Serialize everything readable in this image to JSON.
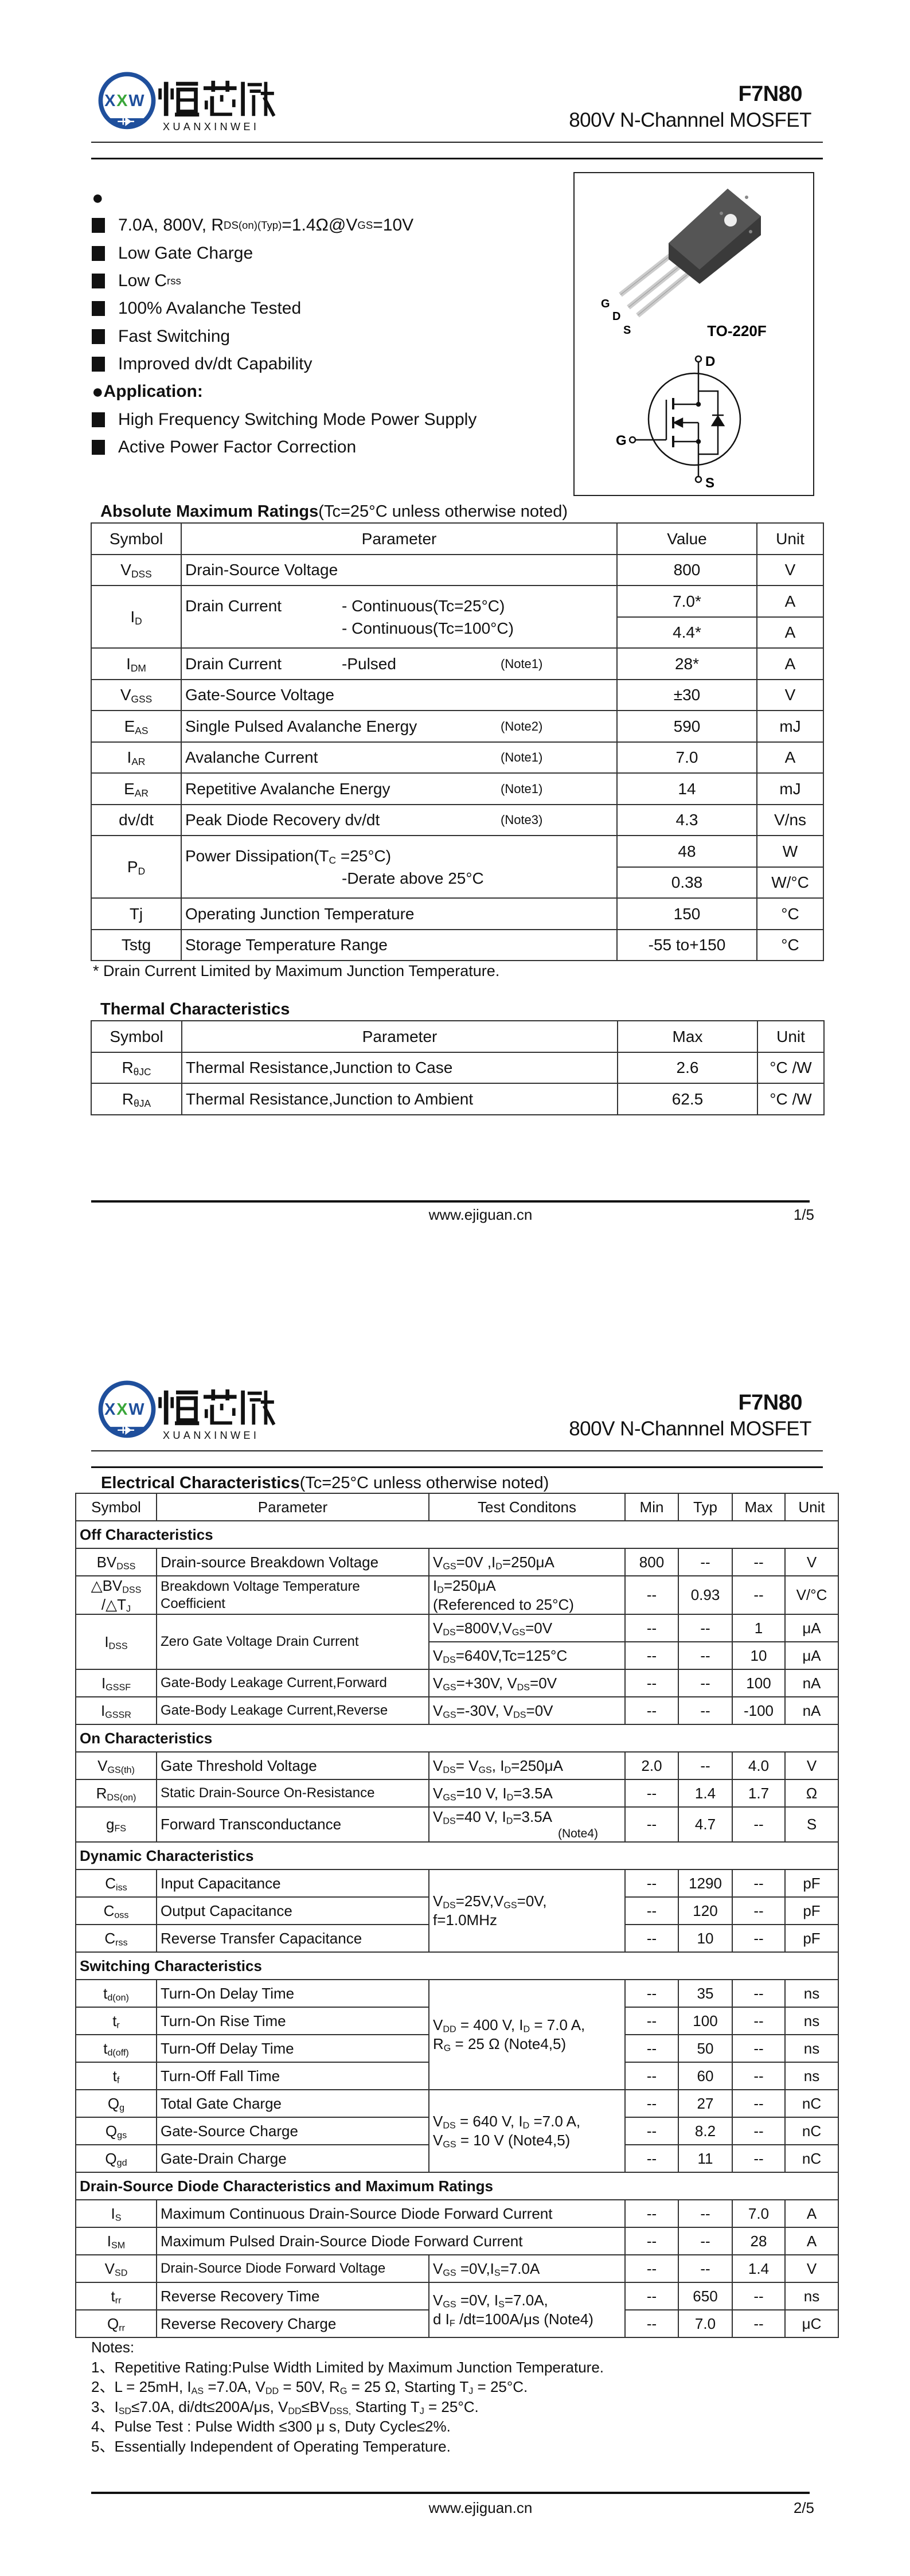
{
  "colors": {
    "logo_blue": "#1f4f9c",
    "logo_green": "#3aa63a",
    "text": "#111111",
    "rule": "#222222"
  },
  "header": {
    "logo": {
      "mark_letters": [
        "X",
        "X",
        "W"
      ],
      "chinese": "恒芯微",
      "pinyin": "XUANXINWEI"
    },
    "part": "F7N80",
    "subtitle": "800V N-Channnel MOSFET"
  },
  "page1": {
    "features": {
      "heading_bullet": "●",
      "items": [
        [
          "7.0A, 800V, R",
          {
            "sub": "DS(on)(Typ)"
          },
          " =1.4Ω@V",
          {
            "sub": "GS"
          },
          "=10V"
        ],
        [
          "Low Gate Charge"
        ],
        [
          "Low C",
          {
            "sub": "rss"
          }
        ],
        [
          "100% Avalanche Tested"
        ],
        [
          "Fast Switching"
        ],
        [
          "Improved dv/dt Capability"
        ]
      ],
      "application_heading": "Application:",
      "application_items": [
        [
          "High Frequency Switching Mode Power Supply"
        ],
        [
          "Active Power Factor Correction"
        ]
      ]
    },
    "package": {
      "name": "TO-220F",
      "pins": {
        "g": "G",
        "d": "D",
        "s": "S"
      }
    },
    "abs_max": {
      "title": "Absolute Maximum Ratings",
      "condition": "(Tc=25°C unless otherwise noted)",
      "headers": {
        "sym": "Symbol",
        "param": "Parameter",
        "value": "Value",
        "unit": "Unit"
      },
      "rows": [
        {
          "sym": [
            "V",
            {
              "sub": "DSS"
            }
          ],
          "param": "Drain-Source Voltage",
          "value": "800",
          "unit": "V"
        },
        {
          "sym": [
            "I",
            {
              "sub": "D"
            }
          ],
          "param": {
            "text": "Drain Current",
            "detail": [
              "- Continuous(Tc=25°C)",
              "- Continuous(Tc=100°C)"
            ]
          },
          "value": "7.0*",
          "unit": "A"
        },
        {
          "value": "4.4*",
          "unit": "A"
        },
        {
          "sym": [
            "I",
            {
              "sub": "DM"
            }
          ],
          "param": {
            "text": "Drain Current",
            "detail": [
              "-Pulsed"
            ],
            "note": "(Note1)"
          },
          "value": "28*",
          "unit": "A"
        },
        {
          "sym": [
            "V",
            {
              "sub": "GSS"
            }
          ],
          "param": "Gate-Source Voltage",
          "value": "±30",
          "unit": "V"
        },
        {
          "sym": [
            "E",
            {
              "sub": "AS"
            }
          ],
          "param": {
            "text": "Single Pulsed Avalanche Energy",
            "note": "(Note2)"
          },
          "value": "590",
          "unit": "mJ"
        },
        {
          "sym": [
            "I",
            {
              "sub": "AR"
            }
          ],
          "param": {
            "text": "Avalanche Current",
            "note": "(Note1)"
          },
          "value": "7.0",
          "unit": "A"
        },
        {
          "sym": [
            "E",
            {
              "sub": "AR"
            }
          ],
          "param": {
            "text": "Repetitive Avalanche Energy",
            "note": "(Note1)"
          },
          "value": "14",
          "unit": "mJ"
        },
        {
          "sym": "dv/dt",
          "param": {
            "text": "Peak Diode Recovery dv/dt",
            "note": "(Note3)"
          },
          "value": "4.3",
          "unit": "V/ns"
        },
        {
          "sym": [
            "P",
            {
              "sub": "D"
            }
          ],
          "param": {
            "text": [
              "Power Dissipation(T",
              {
                "sub": "C"
              },
              " =25°C)"
            ],
            "detail": [
              null,
              "-Derate above 25°C"
            ]
          },
          "value": "48",
          "unit": "W"
        },
        {
          "value": "0.38",
          "unit": "W/°C"
        },
        {
          "sym": "Tj",
          "param": "Operating Junction Temperature",
          "value": "150",
          "unit": "°C"
        },
        {
          "sym": "Tstg",
          "param": "Storage Temperature Range",
          "value": "-55 to+150",
          "unit": "°C"
        }
      ],
      "footnote": "* Drain Current Limited by Maximum Junction Temperature."
    },
    "thermal": {
      "title": "Thermal Characteristics",
      "headers": {
        "sym": "Symbol",
        "param": "Parameter",
        "max": "Max",
        "unit": "Unit"
      },
      "rows": [
        {
          "sym": [
            "R",
            {
              "sub": "θJC"
            }
          ],
          "param": "Thermal Resistance,Junction to Case",
          "max": "2.6",
          "unit": "°C /W"
        },
        {
          "sym": [
            "R",
            {
              "sub": "θJA"
            }
          ],
          "param": "Thermal Resistance,Junction to Ambient",
          "max": "62.5",
          "unit": "°C /W"
        }
      ]
    },
    "footer": {
      "url": "www.ejiguan.cn",
      "page": "1/5"
    }
  },
  "page2": {
    "electrical": {
      "title": "Electrical Characteristics",
      "condition": "(Tc=25°C unless otherwise noted)",
      "headers": {
        "sym": "Symbol",
        "param": "Parameter",
        "cond": "Test Conditons",
        "min": "Min",
        "typ": "Typ",
        "max": "Max",
        "unit": "Unit"
      },
      "rows": [
        {
          "section": "Off Characteristics"
        },
        {
          "sym": [
            "BV",
            {
              "sub": "DSS"
            }
          ],
          "param": "Drain-source Breakdown Voltage",
          "cond": [
            "V",
            {
              "sub": "GS"
            },
            "=0V ,I",
            {
              "sub": "D"
            },
            "=250μA"
          ],
          "min": "800",
          "typ": "--",
          "max": "--",
          "unit": "V"
        },
        {
          "sym": [
            "△BV",
            {
              "sub": "DSS"
            },
            "\n/△T",
            {
              "sub": "J"
            }
          ],
          "param": "Breakdown Voltage Temperature\nCoefficient",
          "cond": [
            "I",
            {
              "sub": "D"
            },
            "=250μA\n(Referenced to 25°C)"
          ],
          "min": "--",
          "typ": "0.93",
          "max": "--",
          "unit": "V/°C"
        },
        {
          "sym": [
            "I",
            {
              "sub": "DSS"
            }
          ],
          "param": "Zero Gate Voltage Drain Current",
          "cond": [
            "V",
            {
              "sub": "DS"
            },
            "=800V,V",
            {
              "sub": "GS"
            },
            "=0V"
          ],
          "min": "--",
          "typ": "--",
          "max": "1",
          "unit": "μA"
        },
        {
          "cond": [
            "V",
            {
              "sub": "DS"
            },
            "=640V,Tc=125°C"
          ],
          "min": "--",
          "typ": "--",
          "max": "10",
          "unit": "μA"
        },
        {
          "sym": [
            "I",
            {
              "sub": "GSSF"
            }
          ],
          "param": "Gate-Body Leakage Current,Forward",
          "cond": [
            "V",
            {
              "sub": "GS"
            },
            "=+30V, V",
            {
              "sub": "DS"
            },
            "=0V"
          ],
          "min": "--",
          "typ": "--",
          "max": "100",
          "unit": "nA"
        },
        {
          "sym": [
            "I",
            {
              "sub": "GSSR"
            }
          ],
          "param": "Gate-Body Leakage Current,Reverse",
          "cond": [
            "V",
            {
              "sub": "GS"
            },
            "=-30V, V",
            {
              "sub": "DS"
            },
            "=0V"
          ],
          "min": "--",
          "typ": "--",
          "max": "-100",
          "unit": "nA"
        },
        {
          "section": "On Characteristics"
        },
        {
          "sym": [
            "V",
            {
              "sub": "GS(th)"
            }
          ],
          "param": "Gate Threshold Voltage",
          "cond": [
            "V",
            {
              "sub": "DS"
            },
            "= V",
            {
              "sub": "GS"
            },
            ", I",
            {
              "sub": "D"
            },
            "=250μA"
          ],
          "min": "2.0",
          "typ": "--",
          "max": "4.0",
          "unit": "V"
        },
        {
          "sym": [
            "R",
            {
              "sub": "DS(on)"
            }
          ],
          "param": "Static Drain-Source On-Resistance",
          "cond": [
            "V",
            {
              "sub": "GS"
            },
            "=10 V, I",
            {
              "sub": "D"
            },
            "=3.5A"
          ],
          "min": "--",
          "typ": "1.4",
          "max": "1.7",
          "unit": "Ω"
        },
        {
          "sym": [
            "g",
            {
              "sub": "FS"
            }
          ],
          "param": "Forward Transconductance",
          "cond": [
            "V",
            {
              "sub": "DS"
            },
            "=40 V, I",
            {
              "sub": "D"
            },
            "=3.5A",
            {
              "note": "(Note4)"
            }
          ],
          "min": "--",
          "typ": "4.7",
          "max": "--",
          "unit": "S"
        },
        {
          "section": "Dynamic Characteristics"
        },
        {
          "sym": [
            "C",
            {
              "sub": "iss"
            }
          ],
          "param": "Input Capacitance",
          "cond": [
            "V",
            {
              "sub": "DS"
            },
            "=25V,V",
            {
              "sub": "GS"
            },
            "=0V,\nf=1.0MHz"
          ],
          "min": "--",
          "typ": "1290",
          "max": "--",
          "unit": "pF"
        },
        {
          "sym": [
            "C",
            {
              "sub": "oss"
            }
          ],
          "param": "Output Capacitance",
          "min": "--",
          "typ": "120",
          "max": "--",
          "unit": "pF"
        },
        {
          "sym": [
            "C",
            {
              "sub": "rss"
            }
          ],
          "param": "Reverse Transfer Capacitance",
          "min": "--",
          "typ": "10",
          "max": "--",
          "unit": "pF"
        },
        {
          "section": "Switching Characteristics"
        },
        {
          "sym": [
            "t",
            {
              "sub": "d(on)"
            }
          ],
          "param": "Turn-On Delay Time",
          "cond": [
            "V",
            {
              "sub": "DD"
            },
            " = 400 V, I",
            {
              "sub": "D"
            },
            " = 7.0 A,\nR",
            {
              "sub": "G"
            },
            " = 25 Ω    (Note4,5)"
          ],
          "min": "--",
          "typ": "35",
          "max": "--",
          "unit": "ns"
        },
        {
          "sym": [
            "t",
            {
              "sub": "r"
            }
          ],
          "param": "Turn-On Rise Time",
          "min": "--",
          "typ": "100",
          "max": "--",
          "unit": "ns"
        },
        {
          "sym": [
            "t",
            {
              "sub": "d(off)"
            }
          ],
          "param": "Turn-Off Delay Time",
          "min": "--",
          "typ": "50",
          "max": "--",
          "unit": "ns"
        },
        {
          "sym": [
            "t",
            {
              "sub": "f"
            }
          ],
          "param": "Turn-Off Fall Time",
          "min": "--",
          "typ": "60",
          "max": "--",
          "unit": "ns"
        },
        {
          "sym": [
            "Q",
            {
              "sub": "g"
            }
          ],
          "param": "Total Gate Charge",
          "cond": [
            "V",
            {
              "sub": "DS"
            },
            " = 640 V, I",
            {
              "sub": "D"
            },
            " =7.0 A,\nV",
            {
              "sub": "GS"
            },
            " = 10 V   (Note4,5)"
          ],
          "min": "--",
          "typ": "27",
          "max": "--",
          "unit": "nC"
        },
        {
          "sym": [
            "Q",
            {
              "sub": "gs"
            }
          ],
          "param": "Gate-Source Charge",
          "min": "--",
          "typ": "8.2",
          "max": "--",
          "unit": "nC"
        },
        {
          "sym": [
            "Q",
            {
              "sub": "gd"
            }
          ],
          "param": "Gate-Drain Charge",
          "min": "--",
          "typ": "11",
          "max": "--",
          "unit": "nC"
        },
        {
          "section": "Drain-Source Diode Characteristics and Maximum Ratings"
        },
        {
          "sym": [
            "I",
            {
              "sub": "S"
            }
          ],
          "param": "Maximum Continuous Drain-Source Diode Forward Current",
          "min": "--",
          "typ": "--",
          "max": "7.0",
          "unit": "A"
        },
        {
          "sym": [
            "I",
            {
              "sub": "SM"
            }
          ],
          "param": "Maximum Pulsed Drain-Source Diode Forward Current",
          "min": "--",
          "typ": "--",
          "max": "28",
          "unit": "A"
        },
        {
          "sym": [
            "V",
            {
              "sub": "SD"
            }
          ],
          "param": "Drain-Source Diode Forward Voltage",
          "cond": [
            "V",
            {
              "sub": "GS"
            },
            " =0V,I",
            {
              "sub": "S"
            },
            "=7.0A"
          ],
          "min": "--",
          "typ": "--",
          "max": "1.4",
          "unit": "V"
        },
        {
          "sym": [
            "t",
            {
              "sub": "rr"
            }
          ],
          "param": "Reverse Recovery Time",
          "cond": [
            "V",
            {
              "sub": "GS"
            },
            " =0V, I",
            {
              "sub": "S"
            },
            "=7.0A,\nd I",
            {
              "sub": "F"
            },
            " /dt=100A/μs (Note4)"
          ],
          "min": "--",
          "typ": "650",
          "max": "--",
          "unit": "ns"
        },
        {
          "sym": [
            "Q",
            {
              "sub": "rr"
            }
          ],
          "param": "Reverse Recovery Charge",
          "min": "--",
          "typ": "7.0",
          "max": "--",
          "unit": "μC"
        }
      ]
    },
    "notes": {
      "title": "Notes:",
      "items": [
        [
          "1、Repetitive Rating:Pulse Width Limited by Maximum Junction Temperature."
        ],
        [
          "2、L = 25mH, I",
          {
            "sub": "AS"
          },
          " =7.0A, V",
          {
            "sub": "DD"
          },
          " = 50V, R",
          {
            "sub": "G"
          },
          " = 25 Ω, Starting T",
          {
            "sub": "J"
          },
          " = 25°C."
        ],
        [
          "3、I",
          {
            "sub": "SD"
          },
          "≤7.0A, di/dt≤200A/μs, V",
          {
            "sub": "DD"
          },
          "≤BV",
          {
            "sub": "DSS,"
          },
          " Starting T",
          {
            "sub": "J"
          },
          " = 25°C."
        ],
        [
          "4、Pulse Test : Pulse Width ≤300 μ s, Duty Cycle≤2%."
        ],
        [
          "5、Essentially Independent of Operating Temperature."
        ]
      ]
    },
    "footer": {
      "url": "www.ejiguan.cn",
      "page": "2/5"
    }
  }
}
